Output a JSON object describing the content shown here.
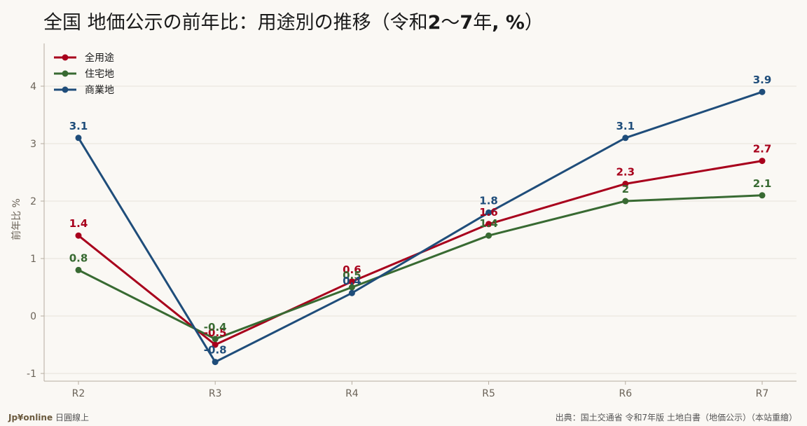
{
  "header": {
    "title_pre": "全国 地価公示の前年比：用途別の推移（令和",
    "title_bold1": "2",
    "title_mid": "～",
    "title_bold2": "7",
    "title_mid2": "年",
    "title_bold3": ", %",
    "title_post": "）"
  },
  "footer": {
    "brand_logo": "Jp¥online",
    "brand_text": "日圓線上",
    "source": "出典：国土交通省 令和7年版 土地白書（地価公示）（本站重繪）"
  },
  "chart_data": {
    "type": "line",
    "categories": [
      "R2",
      "R3",
      "R4",
      "R5",
      "R6",
      "R7"
    ],
    "ylabel": "前年比 %",
    "ylim": [
      -1.1,
      4.5
    ],
    "yticks": [
      -1,
      0,
      1,
      2,
      3,
      4
    ],
    "grid": true,
    "legend_position": "top-left",
    "series": [
      {
        "name": "全用途",
        "color": "#a8001c",
        "values": [
          1.4,
          -0.5,
          0.6,
          1.6,
          2.3,
          2.7
        ],
        "labels": [
          "1.4",
          "-0.5",
          "0.6",
          "1.6",
          "2.3",
          "2.7"
        ]
      },
      {
        "name": "住宅地",
        "color": "#386a32",
        "values": [
          0.8,
          -0.4,
          0.5,
          1.4,
          2.0,
          2.1
        ],
        "labels": [
          "0.8",
          "-0.4",
          "0.5",
          "1.4",
          "2",
          "2.1"
        ]
      },
      {
        "name": "商業地",
        "color": "#1f4d7a",
        "values": [
          3.1,
          -0.8,
          0.4,
          1.8,
          3.1,
          3.9
        ],
        "labels": [
          "3.1",
          "-0.8",
          "0.4",
          "1.8",
          "3.1",
          "3.9"
        ]
      }
    ]
  }
}
